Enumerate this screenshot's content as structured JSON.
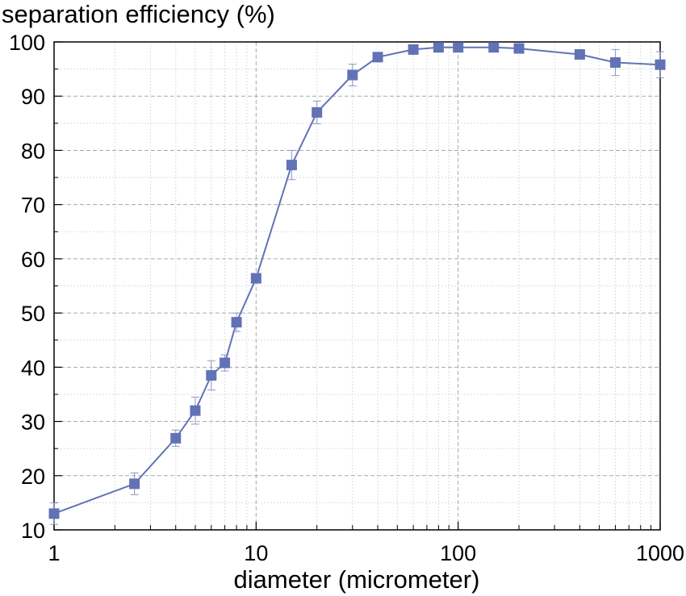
{
  "chart_data": {
    "type": "scatter",
    "ylabel": "separation efficiency (%)",
    "xlabel": "diameter (micrometer)",
    "x_scale": "log",
    "xlim": [
      1,
      1000
    ],
    "ylim": [
      10,
      100
    ],
    "x_tick_values": [
      1,
      10,
      100,
      1000
    ],
    "x_tick_labels": [
      "1",
      "10",
      "100",
      "1000"
    ],
    "y_tick_values": [
      10,
      20,
      30,
      40,
      50,
      60,
      70,
      80,
      90,
      100
    ],
    "y_tick_labels": [
      "10",
      "20",
      "30",
      "40",
      "50",
      "60",
      "70",
      "80",
      "90",
      "100"
    ],
    "grid": true,
    "series": [
      {
        "name": "separation efficiency",
        "color": "#6272b6",
        "marker": "square",
        "line": true,
        "x": [
          1,
          2.5,
          4,
          5,
          6,
          7,
          8,
          10,
          15,
          20,
          30,
          40,
          60,
          80,
          100,
          150,
          200,
          400,
          600,
          1000
        ],
        "y": [
          13.0,
          18.5,
          26.9,
          32.0,
          38.5,
          40.8,
          48.3,
          56.4,
          77.3,
          87.0,
          93.9,
          97.2,
          98.6,
          99.0,
          99.0,
          99.0,
          98.8,
          97.7,
          96.2,
          95.8
        ],
        "err": [
          2.0,
          2.0,
          1.5,
          2.5,
          2.7,
          1.5,
          1.7,
          0.8,
          2.7,
          2.1,
          2.0,
          0.5,
          0.5,
          0.5,
          0.5,
          0.5,
          0.5,
          0.5,
          2.4,
          2.4
        ]
      }
    ]
  }
}
